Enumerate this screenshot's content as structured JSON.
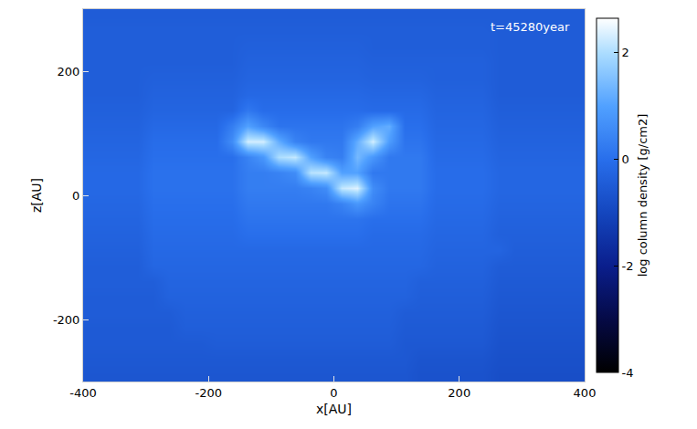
{
  "chart_data": {
    "type": "heatmap",
    "annotation": "t=45280year",
    "x_label": "x[AU]",
    "y_label": "z[AU]",
    "colorbar_title": "log column density [g/cm2]",
    "xlim": [
      -400,
      400
    ],
    "xticks": [
      -400,
      -200,
      0,
      200,
      400
    ],
    "ylim": [
      -300,
      300
    ],
    "yticks": [
      -200,
      0,
      200
    ],
    "zlim": [
      -4,
      2.65
    ],
    "zticks": [
      -4,
      -2,
      0,
      2
    ],
    "x": [
      -387.5,
      -362.5,
      -337.5,
      -312.5,
      -287.5,
      -262.5,
      -237.5,
      -212.5,
      -187.5,
      -162.5,
      -137.5,
      -112.5,
      -87.5,
      -62.5,
      -37.5,
      -12.5,
      12.5,
      37.5,
      62.5,
      87.5,
      112.5,
      137.5,
      162.5,
      187.5,
      212.5,
      237.5,
      262.5,
      287.5,
      312.5,
      337.5,
      362.5,
      387.5
    ],
    "y": [
      -287.5,
      -262.5,
      -237.5,
      -212.5,
      -187.5,
      -162.5,
      -137.5,
      -112.5,
      -87.5,
      -62.5,
      -37.5,
      -12.5,
      12.5,
      37.5,
      62.5,
      87.5,
      112.5,
      137.5,
      162.5,
      187.5,
      212.5,
      237.5,
      262.5,
      287.5
    ],
    "cells": [
      [
        -0.6,
        -0.6,
        -0.6,
        -0.6,
        -0.6,
        -0.6,
        -0.6,
        -0.6,
        -0.6,
        -0.6,
        -0.6,
        -0.6,
        -0.6,
        -0.6,
        -0.6,
        -0.6,
        -0.6,
        -0.6,
        -0.6,
        -0.6,
        -0.6,
        -0.7,
        -0.7,
        -0.7,
        -0.7,
        -0.7,
        -0.8,
        -0.8,
        -0.8,
        -0.8,
        -0.8,
        -0.8
      ],
      [
        -0.55,
        -0.55,
        -0.55,
        -0.55,
        -0.55,
        -0.55,
        -0.55,
        -0.55,
        -0.55,
        -0.55,
        -0.55,
        -0.55,
        -0.55,
        -0.55,
        -0.55,
        -0.55,
        -0.55,
        -0.55,
        -0.55,
        -0.55,
        -0.55,
        -0.65,
        -0.65,
        -0.65,
        -0.65,
        -0.65,
        -0.75,
        -0.75,
        -0.75,
        -0.75,
        -0.75,
        -0.75
      ],
      [
        -0.5,
        -0.5,
        -0.5,
        -0.5,
        -0.5,
        -0.5,
        -0.5,
        -0.5,
        -0.45,
        -0.45,
        -0.45,
        -0.45,
        -0.45,
        -0.45,
        -0.45,
        -0.45,
        -0.45,
        -0.45,
        -0.45,
        -0.45,
        -0.55,
        -0.55,
        -0.55,
        -0.55,
        -0.55,
        -0.55,
        -0.7,
        -0.7,
        -0.7,
        -0.7,
        -0.7,
        -0.7
      ],
      [
        -0.5,
        -0.5,
        -0.5,
        -0.5,
        -0.5,
        -0.5,
        -0.4,
        -0.4,
        -0.4,
        -0.4,
        -0.4,
        -0.4,
        -0.4,
        -0.4,
        -0.4,
        -0.4,
        -0.4,
        -0.4,
        -0.4,
        -0.4,
        -0.5,
        -0.5,
        -0.5,
        -0.5,
        -0.5,
        -0.5,
        -0.65,
        -0.65,
        -0.65,
        -0.65,
        -0.65,
        -0.65
      ],
      [
        -0.45,
        -0.45,
        -0.45,
        -0.45,
        -0.45,
        -0.45,
        -0.35,
        -0.35,
        -0.35,
        -0.35,
        -0.35,
        -0.35,
        -0.35,
        -0.35,
        -0.35,
        -0.35,
        -0.35,
        -0.35,
        -0.35,
        -0.35,
        -0.45,
        -0.45,
        -0.45,
        -0.45,
        -0.45,
        -0.45,
        -0.6,
        -0.6,
        -0.6,
        -0.6,
        -0.6,
        -0.6
      ],
      [
        -0.45,
        -0.45,
        -0.45,
        -0.45,
        -0.45,
        -0.3,
        -0.3,
        -0.3,
        -0.3,
        -0.3,
        -0.3,
        -0.3,
        -0.3,
        -0.3,
        -0.3,
        -0.3,
        -0.3,
        -0.3,
        -0.3,
        -0.3,
        -0.3,
        -0.4,
        -0.4,
        -0.4,
        -0.4,
        -0.4,
        -0.55,
        -0.55,
        -0.55,
        -0.55,
        -0.55,
        -0.55
      ],
      [
        -0.4,
        -0.4,
        -0.4,
        -0.4,
        -0.4,
        -0.25,
        -0.25,
        -0.25,
        -0.25,
        -0.25,
        -0.25,
        -0.25,
        -0.25,
        -0.25,
        -0.25,
        -0.25,
        -0.25,
        -0.25,
        -0.25,
        -0.25,
        -0.25,
        -0.35,
        -0.35,
        -0.35,
        -0.35,
        -0.35,
        -0.5,
        -0.5,
        -0.5,
        -0.5,
        -0.5,
        -0.5
      ],
      [
        -0.4,
        -0.4,
        -0.4,
        -0.4,
        -0.2,
        -0.2,
        -0.2,
        -0.2,
        -0.2,
        -0.2,
        -0.2,
        -0.2,
        -0.2,
        -0.2,
        -0.2,
        -0.2,
        -0.2,
        -0.2,
        -0.2,
        -0.2,
        -0.2,
        -0.2,
        -0.3,
        -0.3,
        -0.3,
        -0.3,
        -0.45,
        -0.45,
        -0.45,
        -0.45,
        -0.45,
        -0.45
      ],
      [
        -0.35,
        -0.35,
        -0.35,
        -0.35,
        -0.15,
        -0.15,
        -0.15,
        -0.15,
        -0.15,
        -0.15,
        -0.15,
        -0.15,
        -0.15,
        -0.15,
        -0.15,
        -0.15,
        -0.15,
        -0.15,
        -0.15,
        -0.15,
        -0.15,
        -0.15,
        -0.25,
        -0.25,
        -0.25,
        -0.25,
        -0.25,
        -0.4,
        -0.4,
        -0.4,
        -0.4,
        -0.4
      ],
      [
        -0.3,
        -0.3,
        -0.3,
        -0.3,
        -0.1,
        -0.1,
        -0.1,
        -0.1,
        -0.1,
        -0.1,
        0,
        0,
        0,
        0,
        0,
        0,
        0,
        0,
        -0.1,
        -0.1,
        -0.1,
        -0.1,
        -0.2,
        -0.2,
        -0.2,
        -0.2,
        -0.35,
        -0.35,
        -0.35,
        -0.35,
        -0.35,
        -0.35
      ],
      [
        -0.25,
        -0.25,
        -0.25,
        -0.25,
        -0.05,
        -0.05,
        -0.05,
        -0.05,
        -0.05,
        -0.05,
        0.1,
        0.1,
        0.1,
        0.1,
        0.1,
        0.1,
        0.1,
        0.1,
        0,
        0,
        0,
        0,
        -0.15,
        -0.15,
        -0.15,
        -0.15,
        -0.3,
        -0.3,
        -0.3,
        -0.3,
        -0.3,
        -0.3
      ],
      [
        -0.2,
        -0.2,
        -0.2,
        -0.2,
        0,
        0,
        0,
        0,
        0,
        0,
        0.2,
        0.2,
        0.2,
        0.2,
        0.2,
        0.2,
        0.4,
        0.8,
        0.4,
        0.1,
        0.1,
        0.1,
        -0.1,
        -0.1,
        -0.1,
        -0.1,
        -0.25,
        -0.25,
        -0.25,
        -0.25,
        -0.25,
        -0.25
      ],
      [
        -0.15,
        -0.15,
        -0.15,
        -0.15,
        0.05,
        0.05,
        0.05,
        0.05,
        0.05,
        0.05,
        0.3,
        0.3,
        0.3,
        0.3,
        0.4,
        0.6,
        2.2,
        2.4,
        0.6,
        0.2,
        0.2,
        0.2,
        -0.05,
        -0.05,
        -0.05,
        -0.05,
        -0.2,
        -0.2,
        -0.2,
        -0.2,
        -0.2,
        -0.2
      ],
      [
        -0.15,
        -0.15,
        -0.15,
        -0.15,
        0.05,
        0.05,
        0.05,
        0.05,
        0.05,
        0.05,
        0.3,
        0.3,
        0.4,
        0.6,
        2.1,
        2.2,
        1.0,
        1.0,
        0.2,
        0.2,
        0.2,
        0.2,
        -0.05,
        -0.05,
        -0.05,
        -0.05,
        -0.2,
        -0.2,
        -0.2,
        -0.2,
        -0.2,
        -0.2
      ],
      [
        -0.2,
        -0.2,
        -0.2,
        -0.2,
        0,
        0,
        0,
        0,
        0,
        0,
        0.4,
        0.8,
        2.0,
        2.2,
        1.0,
        0.4,
        0.3,
        1.4,
        0.8,
        0.2,
        0.2,
        0.2,
        -0.1,
        -0.1,
        -0.1,
        -0.1,
        -0.25,
        -0.25,
        -0.25,
        -0.25,
        -0.25,
        -0.25
      ],
      [
        -0.25,
        -0.25,
        -0.25,
        -0.25,
        -0.05,
        -0.05,
        -0.05,
        -0.05,
        -0.05,
        0.6,
        2.3,
        2.3,
        1.2,
        0.4,
        0.2,
        0.2,
        0.2,
        1.2,
        2.3,
        0.9,
        0.1,
        0.1,
        -0.15,
        -0.15,
        -0.15,
        -0.15,
        -0.3,
        -0.3,
        -0.3,
        -0.3,
        -0.3,
        -0.3
      ],
      [
        -0.3,
        -0.3,
        -0.3,
        -0.3,
        -0.15,
        -0.15,
        -0.15,
        -0.15,
        -0.15,
        0.3,
        1.0,
        0.5,
        0.1,
        0.1,
        0.1,
        0.1,
        0.1,
        0.3,
        1.0,
        1.2,
        0,
        0,
        -0.2,
        -0.2,
        -0.2,
        -0.2,
        -0.35,
        -0.35,
        -0.35,
        -0.35,
        -0.35,
        -0.35
      ],
      [
        -0.35,
        -0.35,
        -0.35,
        -0.35,
        -0.25,
        -0.25,
        -0.25,
        -0.25,
        -0.25,
        -0.25,
        0.2,
        -0.05,
        -0.05,
        -0.05,
        -0.05,
        -0.05,
        -0.05,
        -0.05,
        -0.1,
        -0.1,
        -0.1,
        -0.1,
        -0.25,
        -0.25,
        -0.25,
        -0.25,
        -0.4,
        -0.4,
        -0.4,
        -0.4,
        -0.4,
        -0.4
      ],
      [
        -0.4,
        -0.4,
        -0.4,
        -0.4,
        -0.3,
        -0.3,
        -0.3,
        -0.3,
        -0.3,
        -0.3,
        -0.15,
        -0.15,
        -0.15,
        -0.15,
        -0.15,
        -0.15,
        -0.15,
        -0.15,
        -0.2,
        -0.2,
        -0.2,
        -0.2,
        -0.3,
        -0.3,
        -0.3,
        -0.3,
        -0.45,
        -0.45,
        -0.45,
        -0.45,
        -0.45,
        -0.45
      ],
      [
        -0.4,
        -0.4,
        -0.4,
        -0.4,
        -0.35,
        -0.35,
        -0.35,
        -0.35,
        -0.35,
        -0.35,
        -0.25,
        -0.25,
        -0.25,
        -0.25,
        -0.25,
        -0.25,
        -0.25,
        -0.25,
        -0.3,
        -0.3,
        -0.3,
        -0.3,
        -0.35,
        -0.35,
        -0.35,
        -0.35,
        -0.45,
        -0.45,
        -0.45,
        -0.45,
        -0.45,
        -0.45
      ],
      [
        -0.4,
        -0.4,
        -0.4,
        -0.4,
        -0.4,
        -0.4,
        -0.4,
        -0.4,
        -0.4,
        -0.4,
        -0.3,
        -0.3,
        -0.3,
        -0.3,
        -0.3,
        -0.3,
        -0.3,
        -0.3,
        -0.35,
        -0.35,
        -0.35,
        -0.35,
        -0.35,
        -0.35,
        -0.35,
        -0.35,
        -0.45,
        -0.45,
        -0.45,
        -0.45,
        -0.45,
        -0.45
      ],
      [
        -0.4,
        -0.4,
        -0.4,
        -0.4,
        -0.4,
        -0.4,
        -0.4,
        -0.4,
        -0.4,
        -0.4,
        -0.35,
        -0.35,
        -0.35,
        -0.35,
        -0.35,
        -0.35,
        -0.35,
        -0.35,
        -0.4,
        -0.4,
        -0.4,
        -0.4,
        -0.4,
        -0.4,
        -0.4,
        -0.4,
        -0.45,
        -0.45,
        -0.45,
        -0.45,
        -0.45,
        -0.45
      ],
      [
        -0.4,
        -0.4,
        -0.4,
        -0.4,
        -0.4,
        -0.4,
        -0.4,
        -0.4,
        -0.4,
        -0.4,
        -0.4,
        -0.4,
        -0.4,
        -0.4,
        -0.4,
        -0.4,
        -0.4,
        -0.4,
        -0.4,
        -0.4,
        -0.4,
        -0.4,
        -0.4,
        -0.4,
        -0.4,
        -0.4,
        -0.45,
        -0.45,
        -0.45,
        -0.45,
        -0.45,
        -0.45
      ],
      [
        -0.45,
        -0.45,
        -0.45,
        -0.45,
        -0.45,
        -0.45,
        -0.45,
        -0.45,
        -0.45,
        -0.45,
        -0.45,
        -0.45,
        -0.45,
        -0.45,
        -0.45,
        -0.45,
        -0.45,
        -0.45,
        -0.45,
        -0.45,
        -0.45,
        -0.45,
        -0.45,
        -0.45,
        -0.45,
        -0.45,
        -0.45,
        -0.45,
        -0.45,
        -0.45,
        -0.45,
        -0.45
      ]
    ]
  }
}
